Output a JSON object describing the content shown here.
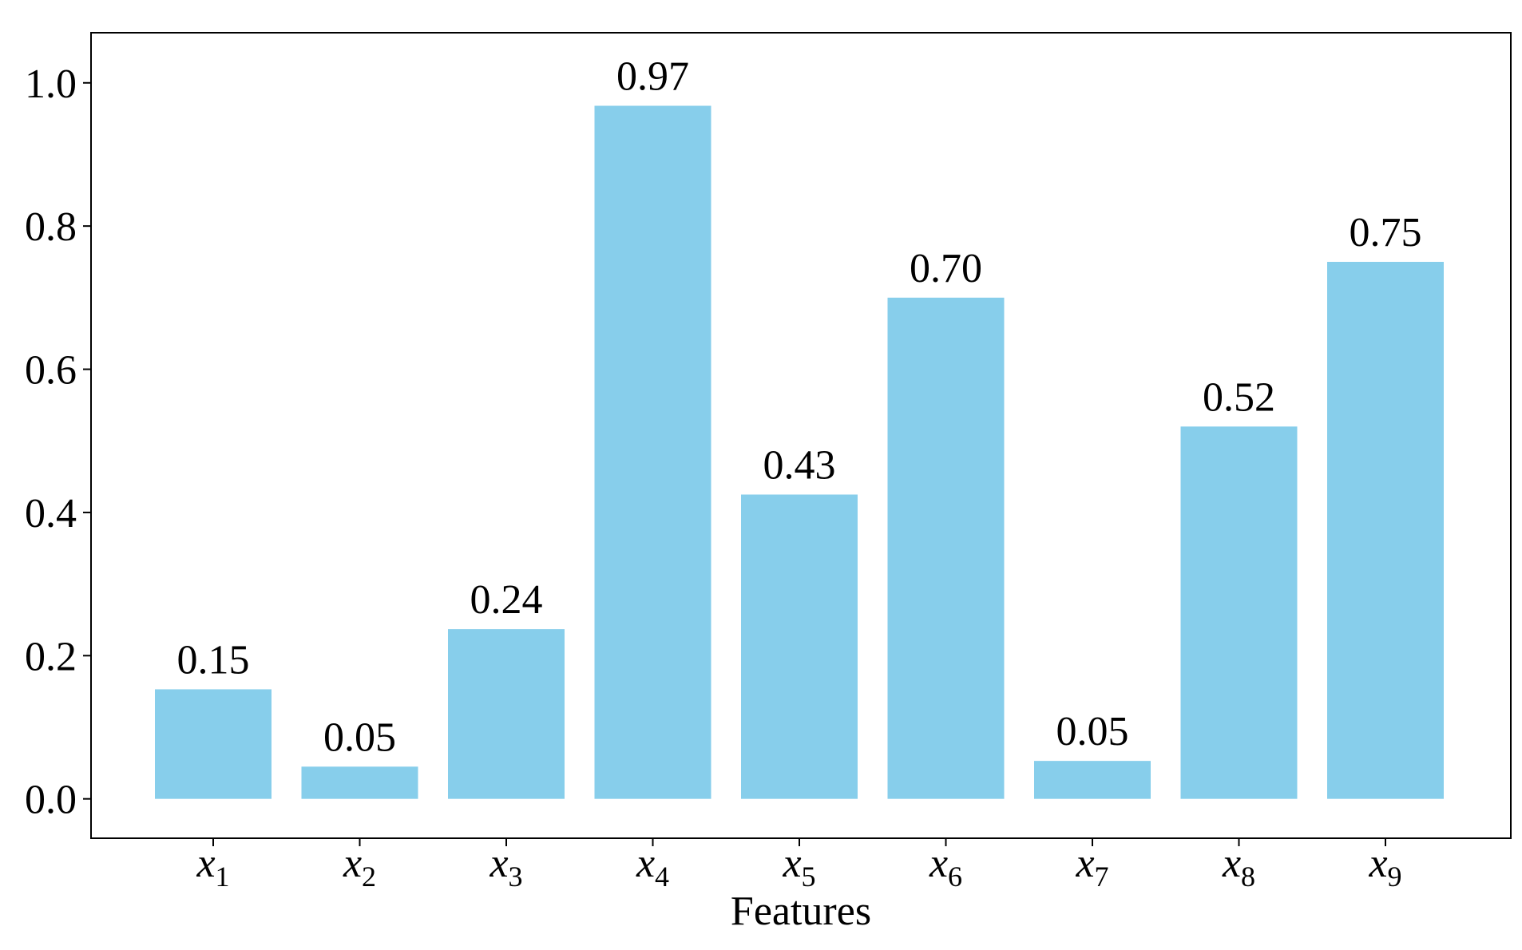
{
  "chart_data": {
    "type": "bar",
    "categories": [
      "x1",
      "x2",
      "x3",
      "x4",
      "x5",
      "x6",
      "x7",
      "x8",
      "x9"
    ],
    "category_labels": [
      {
        "base": "x",
        "sub": "1"
      },
      {
        "base": "x",
        "sub": "2"
      },
      {
        "base": "x",
        "sub": "3"
      },
      {
        "base": "x",
        "sub": "4"
      },
      {
        "base": "x",
        "sub": "5"
      },
      {
        "base": "x",
        "sub": "6"
      },
      {
        "base": "x",
        "sub": "7"
      },
      {
        "base": "x",
        "sub": "8"
      },
      {
        "base": "x",
        "sub": "9"
      }
    ],
    "values": [
      0.153,
      0.045,
      0.237,
      0.968,
      0.425,
      0.7,
      0.053,
      0.52,
      0.75
    ],
    "data_labels": [
      "0.15",
      "0.05",
      "0.24",
      "0.97",
      "0.43",
      "0.70",
      "0.05",
      "0.52",
      "0.75"
    ],
    "title": "",
    "xlabel": "Features",
    "ylabel": "",
    "ylim": [
      -0.055,
      1.07
    ],
    "yticks": [
      0.0,
      0.2,
      0.4,
      0.6,
      0.8,
      1.0
    ],
    "ytick_labels": [
      "0.0",
      "0.2",
      "0.4",
      "0.6",
      "0.8",
      "1.0"
    ],
    "grid": false,
    "legend": "none",
    "colors": {
      "bar": "#87CEEB",
      "axis": "#000000",
      "text": "#000000"
    }
  }
}
